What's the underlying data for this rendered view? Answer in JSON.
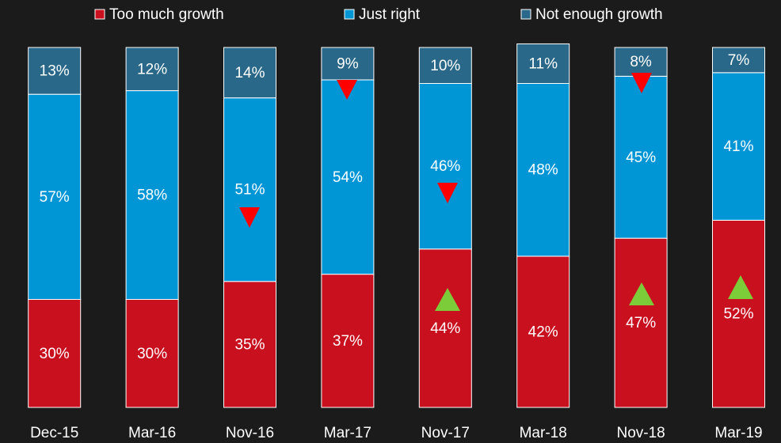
{
  "chart_data": {
    "type": "stacked_bar",
    "categories": [
      "Dec-15",
      "Mar-16",
      "Nov-16",
      "Mar-17",
      "Nov-17",
      "Mar-18",
      "Nov-18",
      "Mar-19"
    ],
    "series": [
      {
        "name": "Too much growth",
        "color": "#c8101e",
        "values": [
          30,
          30,
          35,
          37,
          44,
          42,
          47,
          52
        ],
        "value_labels": [
          "30%",
          "30%",
          "35%",
          "37%",
          "44%",
          "42%",
          "47%",
          "52%"
        ]
      },
      {
        "name": "Just right",
        "color": "#0096d6",
        "values": [
          57,
          58,
          51,
          54,
          46,
          48,
          45,
          41
        ],
        "value_labels": [
          "57%",
          "58%",
          "51%",
          "54%",
          "46%",
          "48%",
          "45%",
          "41%"
        ]
      },
      {
        "name": "Not enough growth",
        "color": "#2a6889",
        "values": [
          13,
          12,
          14,
          9,
          10,
          11,
          8,
          7
        ],
        "value_labels": [
          "13%",
          "12%",
          "14%",
          "9%",
          "10%",
          "11%",
          "8%",
          "7%"
        ]
      }
    ],
    "ylim": [
      0,
      100
    ],
    "legend": "top"
  }
}
